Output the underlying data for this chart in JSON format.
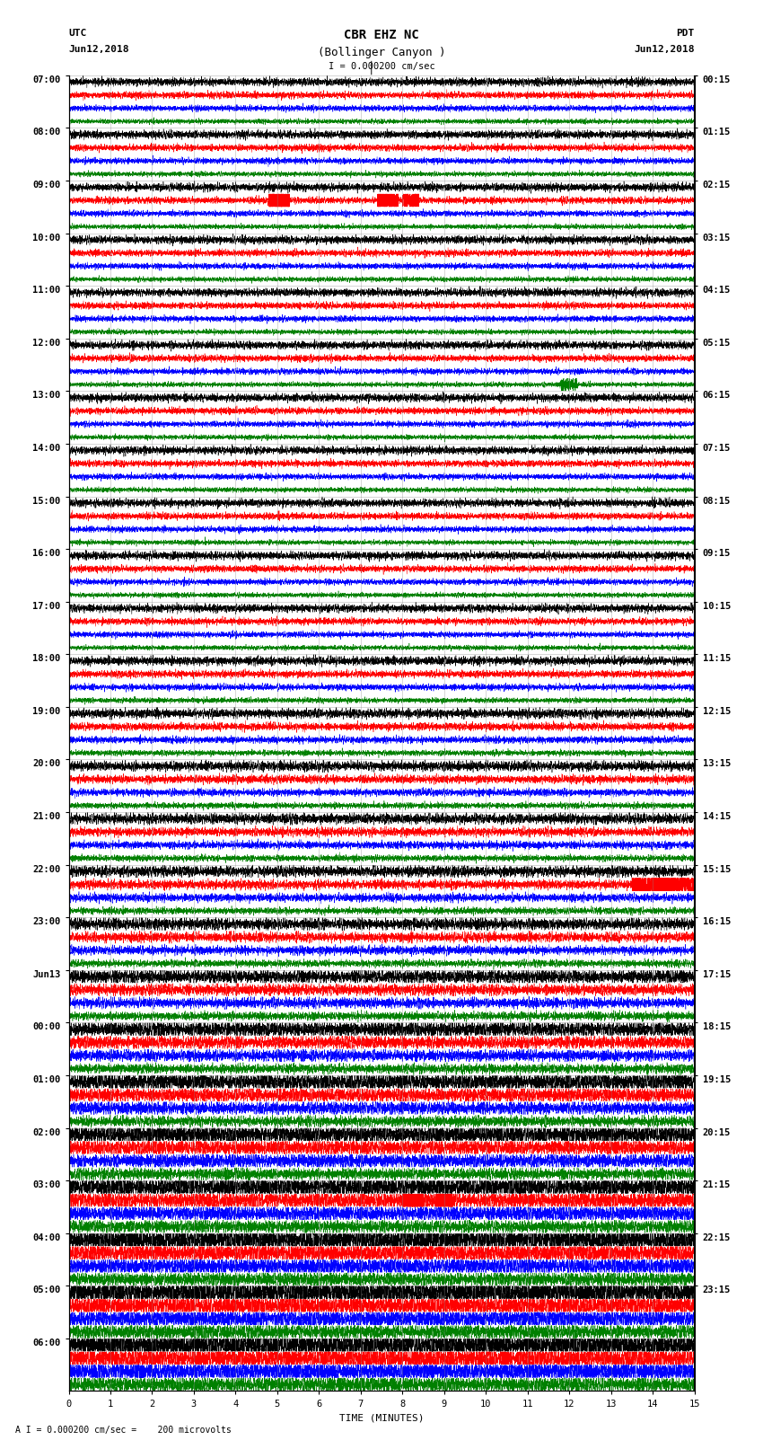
{
  "title_line1": "CBR EHZ NC",
  "title_line2": "(Bollinger Canyon )",
  "scale_text": "I = 0.000200 cm/sec",
  "footer_text": "A I = 0.000200 cm/sec =    200 microvolts",
  "xlabel": "TIME (MINUTES)",
  "utc_label": "UTC",
  "utc_date": "Jun12,2018",
  "pdt_label": "PDT",
  "pdt_date": "Jun12,2018",
  "left_times": [
    "07:00",
    "08:00",
    "09:00",
    "10:00",
    "11:00",
    "12:00",
    "13:00",
    "14:00",
    "15:00",
    "16:00",
    "17:00",
    "18:00",
    "19:00",
    "20:00",
    "21:00",
    "22:00",
    "23:00",
    "Jun13",
    "00:00",
    "01:00",
    "02:00",
    "03:00",
    "04:00",
    "05:00",
    "06:00"
  ],
  "right_times": [
    "00:15",
    "01:15",
    "02:15",
    "03:15",
    "04:15",
    "05:15",
    "06:15",
    "07:15",
    "08:15",
    "09:15",
    "10:15",
    "11:15",
    "12:15",
    "13:15",
    "14:15",
    "15:15",
    "16:15",
    "17:15",
    "18:15",
    "19:15",
    "20:15",
    "21:15",
    "22:15",
    "23:15"
  ],
  "n_rows": 25,
  "traces_per_row": 4,
  "trace_colors": [
    "black",
    "red",
    "blue",
    "green"
  ],
  "minutes": 15,
  "background_color": "white",
  "grid_color": "#888888",
  "title_fontsize": 10,
  "label_fontsize": 8,
  "tick_fontsize": 7.5,
  "noise_amp_base": [
    0.3,
    0.25,
    0.22,
    0.18
  ],
  "fig_width": 8.5,
  "fig_height": 16.13
}
